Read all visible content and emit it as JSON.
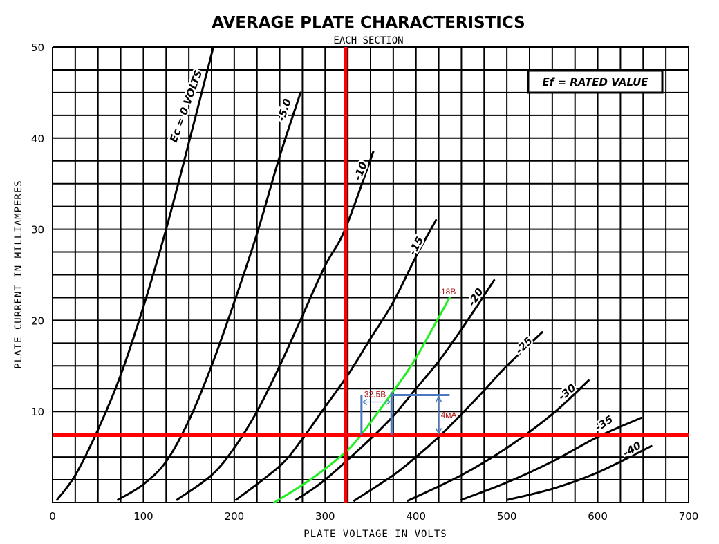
{
  "chart_data": {
    "type": "line",
    "title": "AVERAGE PLATE CHARACTERISTICS",
    "subtitle": "EACH SECTION",
    "xlabel": "PLATE VOLTAGE IN VOLTS",
    "ylabel": "PLATE CURRENT IN MILLIAMPERES",
    "xlim": [
      0,
      700
    ],
    "ylim": [
      0,
      50
    ],
    "x_ticks": [
      "0",
      "100",
      "200",
      "300",
      "400",
      "500",
      "600",
      "700"
    ],
    "y_ticks": [
      "10",
      "20",
      "30",
      "40",
      "50"
    ],
    "grid": {
      "on": true,
      "x_step": 25,
      "y_step": 2.5
    },
    "legend_box": "Ef = RATED VALUE",
    "series": [
      {
        "name": "Ec=0",
        "label": "Ec = 0 VOLTS",
        "color": "#000000",
        "points": [
          [
            5,
            0.3
          ],
          [
            25,
            3
          ],
          [
            50,
            8
          ],
          [
            75,
            14
          ],
          [
            100,
            21.5
          ],
          [
            125,
            30
          ],
          [
            150,
            39.5
          ],
          [
            177,
            50
          ]
        ]
      },
      {
        "name": "Ec=-5",
        "label": "-5.0",
        "color": "#000000",
        "points": [
          [
            72,
            0.3
          ],
          [
            100,
            2
          ],
          [
            125,
            4.5
          ],
          [
            150,
            9
          ],
          [
            175,
            15
          ],
          [
            200,
            22
          ],
          [
            225,
            29.5
          ],
          [
            250,
            38
          ],
          [
            273,
            45
          ]
        ]
      },
      {
        "name": "Ec=-10",
        "label": "-10",
        "color": "#000000",
        "points": [
          [
            137,
            0.3
          ],
          [
            175,
            3
          ],
          [
            200,
            6
          ],
          [
            225,
            10
          ],
          [
            250,
            15
          ],
          [
            275,
            20.5
          ],
          [
            300,
            26
          ],
          [
            322,
            30
          ],
          [
            353,
            38.5
          ]
        ]
      },
      {
        "name": "Ec=-15",
        "label": "-15",
        "color": "#000000",
        "points": [
          [
            202,
            0.3
          ],
          [
            250,
            4
          ],
          [
            275,
            7
          ],
          [
            300,
            10.5
          ],
          [
            325,
            14
          ],
          [
            350,
            18
          ],
          [
            375,
            22
          ],
          [
            400,
            27
          ],
          [
            422,
            31
          ]
        ]
      },
      {
        "name": "Ec=-18",
        "label": "-18В",
        "color": "#22ee22",
        "points": [
          [
            244,
            0
          ],
          [
            285,
            2.6
          ],
          [
            322,
            5.5
          ],
          [
            340,
            7.5
          ],
          [
            372,
            11.8
          ],
          [
            399,
            15.7
          ],
          [
            437,
            22.5
          ]
        ]
      },
      {
        "name": "Ec=-20",
        "label": "-20",
        "color": "#000000",
        "points": [
          [
            268,
            0.3
          ],
          [
            300,
            2.5
          ],
          [
            350,
            7
          ],
          [
            375,
            9.5
          ],
          [
            400,
            12.5
          ],
          [
            425,
            15.5
          ],
          [
            450,
            19
          ],
          [
            486,
            24.4
          ]
        ]
      },
      {
        "name": "Ec=-25",
        "label": "-25",
        "color": "#000000",
        "points": [
          [
            332,
            0.2
          ],
          [
            375,
            3
          ],
          [
            400,
            5
          ],
          [
            425,
            7.2
          ],
          [
            450,
            9.7
          ],
          [
            475,
            12.3
          ],
          [
            500,
            15
          ],
          [
            539,
            18.7
          ]
        ]
      },
      {
        "name": "Ec=-30",
        "label": "-30",
        "color": "#000000",
        "points": [
          [
            391,
            0.2
          ],
          [
            450,
            3
          ],
          [
            500,
            6
          ],
          [
            550,
            9.7
          ],
          [
            590,
            13.4
          ]
        ]
      },
      {
        "name": "Ec=-35",
        "label": "-35",
        "color": "#000000",
        "points": [
          [
            450,
            0.3
          ],
          [
            500,
            2.2
          ],
          [
            550,
            4.5
          ],
          [
            600,
            7.2
          ],
          [
            648,
            9.3
          ]
        ]
      },
      {
        "name": "Ec=-40",
        "label": "-40",
        "color": "#000000",
        "points": [
          [
            501,
            0.3
          ],
          [
            550,
            1.5
          ],
          [
            600,
            3.3
          ],
          [
            659,
            6.2
          ]
        ]
      }
    ],
    "annotations": {
      "operating_point": {
        "voltage": 322.5,
        "current": 7.4,
        "color": "#ff0000"
      },
      "delta_v": {
        "label": "32.5В",
        "from": 340,
        "to": 373,
        "color": "#4a78c0"
      },
      "delta_i": {
        "label": "4мА",
        "from": 7.4,
        "to": 11.8,
        "at_voltage": 425,
        "color": "#4a78c0"
      }
    }
  }
}
